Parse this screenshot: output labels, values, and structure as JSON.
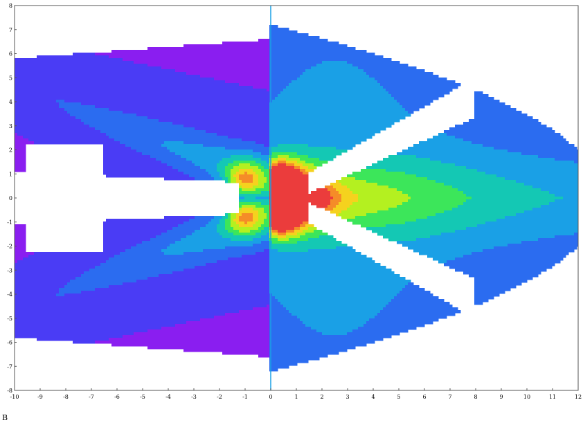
{
  "chart_data": {
    "type": "heatmap",
    "title": "",
    "xlabel": "",
    "ylabel": "",
    "xlim": [
      -10,
      12
    ],
    "ylim": [
      -8,
      8
    ],
    "x_ticks": [
      "-10",
      "-9",
      "-8",
      "-7",
      "-6",
      "-5",
      "-4",
      "-3",
      "-2",
      "-1",
      "0",
      "1",
      "2",
      "3",
      "4",
      "5",
      "6",
      "7",
      "8",
      "9",
      "10",
      "11",
      "12"
    ],
    "y_ticks": [
      "8",
      "7",
      "6",
      "5",
      "4",
      "3",
      "2",
      "1",
      "0",
      "-1",
      "-2",
      "-3",
      "-4",
      "-5",
      "-6",
      "-7",
      "-8"
    ],
    "grid": false,
    "legend": "none",
    "colormap": [
      "#ffffff",
      "#8a1ef0",
      "#4a3cf5",
      "#2b6cf0",
      "#1aa0e6",
      "#14c8b4",
      "#3ce65a",
      "#b4f020",
      "#f5d21e",
      "#f58c28",
      "#eb3c3c"
    ],
    "background": "#ffffff"
  },
  "panel_label": "B"
}
